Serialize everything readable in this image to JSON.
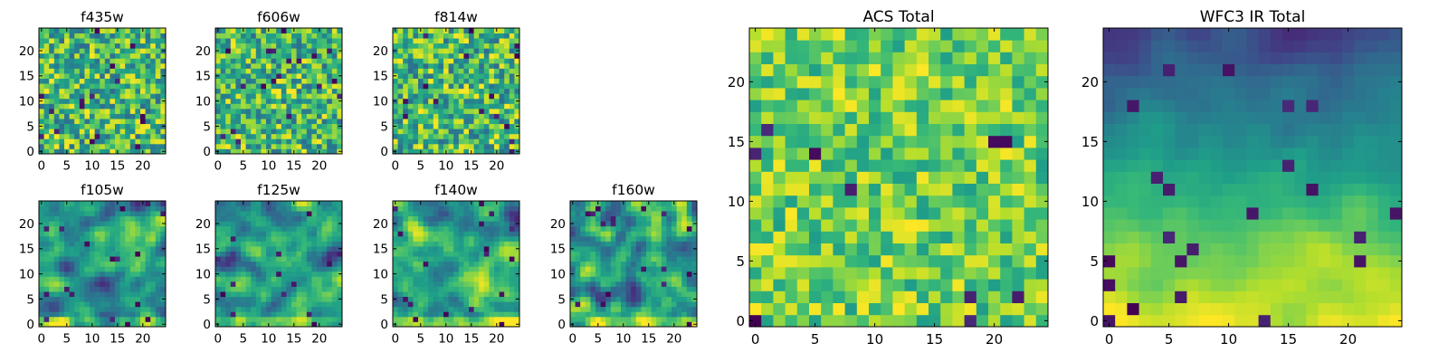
{
  "chart_data": [
    {
      "type": "heatmap",
      "title": "f435w",
      "grid": "25x25",
      "colormap": "viridis",
      "xlim": [
        0,
        24
      ],
      "ylim": [
        0,
        24
      ],
      "xticks": [
        "0",
        "5",
        "10",
        "15",
        "20"
      ],
      "yticks": [
        "0",
        "5",
        "10",
        "15",
        "20"
      ],
      "texture": "noise",
      "darkness": 0.35
    },
    {
      "type": "heatmap",
      "title": "f606w",
      "grid": "25x25",
      "colormap": "viridis",
      "xlim": [
        0,
        24
      ],
      "ylim": [
        0,
        24
      ],
      "xticks": [
        "0",
        "5",
        "10",
        "15",
        "20"
      ],
      "yticks": [
        "0",
        "5",
        "10",
        "15",
        "20"
      ],
      "texture": "noise",
      "darkness": 0.4
    },
    {
      "type": "heatmap",
      "title": "f814w",
      "grid": "25x25",
      "colormap": "viridis",
      "xlim": [
        0,
        24
      ],
      "ylim": [
        0,
        24
      ],
      "xticks": [
        "0",
        "5",
        "10",
        "15",
        "20"
      ],
      "yticks": [
        "0",
        "5",
        "10",
        "15",
        "20"
      ],
      "texture": "noise",
      "darkness": 0.3
    },
    {
      "type": "heatmap",
      "title": "f105w",
      "grid": "25x25",
      "colormap": "viridis",
      "xlim": [
        0,
        24
      ],
      "ylim": [
        0,
        24
      ],
      "xticks": [
        "0",
        "5",
        "10",
        "15",
        "20"
      ],
      "yticks": [
        "0",
        "5",
        "10",
        "15",
        "20"
      ],
      "texture": "smooth",
      "darkness": 0.35
    },
    {
      "type": "heatmap",
      "title": "f125w",
      "grid": "25x25",
      "colormap": "viridis",
      "xlim": [
        0,
        24
      ],
      "ylim": [
        0,
        24
      ],
      "xticks": [
        "0",
        "5",
        "10",
        "15",
        "20"
      ],
      "yticks": [
        "0",
        "5",
        "10",
        "15",
        "20"
      ],
      "texture": "smooth",
      "darkness": 0.3
    },
    {
      "type": "heatmap",
      "title": "f140w",
      "grid": "25x25",
      "colormap": "viridis",
      "xlim": [
        0,
        24
      ],
      "ylim": [
        0,
        24
      ],
      "xticks": [
        "0",
        "5",
        "10",
        "15",
        "20"
      ],
      "yticks": [
        "0",
        "5",
        "10",
        "15",
        "20"
      ],
      "texture": "smooth",
      "darkness": 0.35
    },
    {
      "type": "heatmap",
      "title": "f160w",
      "grid": "25x25",
      "colormap": "viridis",
      "xlim": [
        0,
        24
      ],
      "ylim": [
        0,
        24
      ],
      "xticks": [
        "0",
        "5",
        "10",
        "15",
        "20"
      ],
      "yticks": [
        "0",
        "5",
        "10",
        "15",
        "20"
      ],
      "texture": "smooth",
      "darkness": 0.4
    },
    {
      "type": "heatmap",
      "title": "ACS Total",
      "grid": "25x25",
      "colormap": "viridis",
      "xlim": [
        0,
        24
      ],
      "ylim": [
        0,
        24
      ],
      "xticks": [
        "0",
        "5",
        "10",
        "15",
        "20"
      ],
      "yticks": [
        "0",
        "5",
        "10",
        "15",
        "20"
      ],
      "texture": "sparse",
      "darkness": 0.15
    },
    {
      "type": "heatmap",
      "title": "WFC3 IR Total",
      "grid": "25x25",
      "colormap": "viridis",
      "xlim": [
        0,
        24
      ],
      "ylim": [
        0,
        24
      ],
      "xticks": [
        "0",
        "5",
        "10",
        "15",
        "20"
      ],
      "yticks": [
        "0",
        "5",
        "10",
        "15",
        "20"
      ],
      "texture": "gradient",
      "darkness": 0.5
    }
  ]
}
